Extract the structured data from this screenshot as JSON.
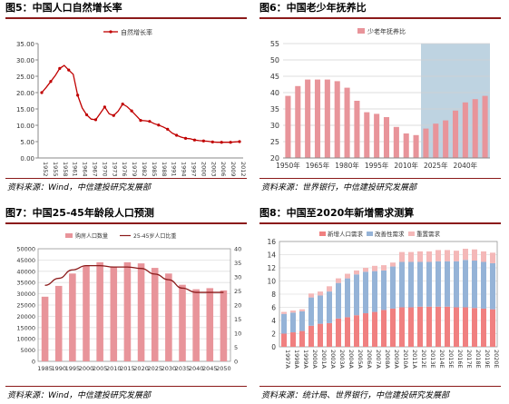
{
  "charts": [
    {
      "title": "图5：中国人口自然增长率",
      "source": "资料来源：Wind，中信建投研究发展部",
      "chart_data": {
        "type": "line",
        "legend": [
          "自然增长率"
        ],
        "legend_position": "top-center",
        "x_labels": [
          "1952",
          "1955",
          "1958",
          "1961",
          "1964",
          "1967",
          "1970",
          "1973",
          "1976",
          "1979",
          "1982",
          "1985",
          "1988",
          "1991",
          "1994",
          "1997",
          "2000",
          "2003",
          "2006",
          "2009",
          "2012"
        ],
        "series": [
          {
            "name": "自然增长率",
            "color": "#c00000",
            "values": [
              20.0,
              21.6,
              23.4,
              25.2,
              27.4,
              28.3,
              26.9,
              25.6,
              19.2,
              15.3,
              13.2,
              11.9,
              11.7,
              13.6,
              15.6,
              13.5,
              13.0,
              14.3,
              16.5,
              15.7,
              14.4,
              12.98,
              11.5,
              11.4,
              11.2,
              10.5,
              10.06,
              9.5,
              8.8,
              7.6,
              6.95,
              6.4,
              6.0,
              5.9,
              5.5,
              5.3,
              5.2,
              5.1,
              4.9,
              4.8,
              4.8,
              4.8,
              4.8,
              4.92,
              5.0
            ]
          }
        ],
        "ylim": [
          0,
          35
        ],
        "yticks": [
          "0.00",
          "5.00",
          "10.00",
          "15.00",
          "20.00",
          "25.00",
          "30.00",
          "35.00"
        ],
        "grid": false
      }
    },
    {
      "title": "图6：中国老少年抚养比",
      "source": "资料来源：世界银行，中信建投研究发展部",
      "chart_data": {
        "type": "bar",
        "legend": [
          "少老年抚养比"
        ],
        "legend_position": "top-center",
        "x_labels": [
          "1950年",
          "1965年",
          "1980年",
          "1995年",
          "2010年",
          "2025年",
          "2040年"
        ],
        "values": [
          39,
          42,
          44,
          44,
          44,
          43.5,
          41.5,
          37.5,
          34,
          33.5,
          32.5,
          29.5,
          27.5,
          27,
          29,
          30.5,
          31.5,
          34.5,
          37,
          38,
          39
        ],
        "forecast_from_index": 14,
        "ylim": [
          20,
          55
        ],
        "yticks": [
          "20",
          "25",
          "30",
          "35",
          "40",
          "45",
          "50",
          "55"
        ],
        "grid": true
      }
    },
    {
      "title": "图7：中国25-45年龄段人口预测",
      "source": "资料来源：Wind，中信建投研究发展部",
      "chart_data": {
        "type": "bar",
        "legend": [
          "购房人口数量",
          "25-45岁人口比重"
        ],
        "legend_position": "top-center",
        "categories": [
          "1985",
          "1990",
          "1995",
          "2000",
          "2005",
          "2010",
          "2015",
          "2020",
          "2025",
          "2030",
          "2035",
          "2040",
          "2045",
          "2050"
        ],
        "series": [
          {
            "name": "购房人口数量",
            "type": "bar",
            "axis": "left",
            "values": [
              28700,
              33500,
              39000,
              42500,
              44000,
              42000,
              44000,
              43500,
              41500,
              39000,
              34000,
              32000,
              32500,
              31500
            ]
          },
          {
            "name": "25-45岁人口比重",
            "type": "line",
            "axis": "right",
            "values": [
              27,
              29.5,
              32.5,
              34,
              34,
              33.5,
              33.5,
              33,
              31,
              29,
              26,
              24.5,
              24.5,
              24.5
            ]
          }
        ],
        "ylim_left": [
          0,
          50000
        ],
        "ylim_right": [
          0,
          40
        ],
        "yticks_left": [
          "0",
          "5000",
          "10000",
          "15000",
          "20000",
          "25000",
          "30000",
          "35000",
          "40000",
          "45000",
          "50000"
        ],
        "yticks_right": [
          "0",
          "5",
          "10",
          "15",
          "20",
          "25",
          "30",
          "35",
          "40"
        ],
        "grid": true
      }
    },
    {
      "title": "图8：中国至2020年新增需求测算",
      "source": "资料来源：统计局、世界银行，中信建投研究发展部",
      "chart_data": {
        "type": "bar",
        "stacked": true,
        "legend": [
          "新增人口需求",
          "改善性需求",
          "重置需求"
        ],
        "legend_position": "top-left",
        "categories": [
          "1997A",
          "1998A",
          "1999A",
          "2000A",
          "2001A",
          "2002A",
          "2003A",
          "2004A",
          "2005A",
          "2006A",
          "2007A",
          "2008A",
          "2009A",
          "2010A",
          "2011A",
          "2012E",
          "2013E",
          "2014E",
          "2015E",
          "2016E",
          "2017E",
          "2018E",
          "2019E",
          "2020E"
        ],
        "series": [
          {
            "name": "新增人口需求",
            "color": "#f08080",
            "values": [
              2,
              2.2,
              2.4,
              3.2,
              3.5,
              3.6,
              4.3,
              4.5,
              4.8,
              5.1,
              5.3,
              5.6,
              5.8,
              6.0,
              6.0,
              6.1,
              6.1,
              6.1,
              6.1,
              6.0,
              6.0,
              5.9,
              5.8,
              5.7
            ]
          },
          {
            "name": "改善性需求",
            "color": "#95b3d7",
            "values": [
              3,
              3,
              3,
              4.3,
              4.3,
              4.8,
              5.4,
              5.9,
              6.2,
              6.3,
              6.2,
              6.0,
              6.4,
              6.9,
              6.9,
              6.8,
              6.8,
              6.9,
              6.9,
              7.0,
              7.2,
              7.2,
              7.1,
              7.0
            ]
          },
          {
            "name": "重置需求",
            "color": "#f4b8b8",
            "values": [
              0.3,
              0.3,
              0.3,
              0.6,
              0.6,
              0.8,
              0.7,
              0.7,
              0.6,
              0.6,
              0.8,
              0.8,
              0.6,
              1.5,
              1.5,
              1.6,
              1.6,
              1.7,
              1.7,
              1.6,
              1.7,
              1.7,
              1.6,
              1.6
            ]
          }
        ],
        "ylim": [
          0,
          16
        ],
        "yticks": [
          "0",
          "2",
          "4",
          "6",
          "8",
          "10",
          "12",
          "14",
          "16"
        ],
        "grid": true
      }
    }
  ]
}
